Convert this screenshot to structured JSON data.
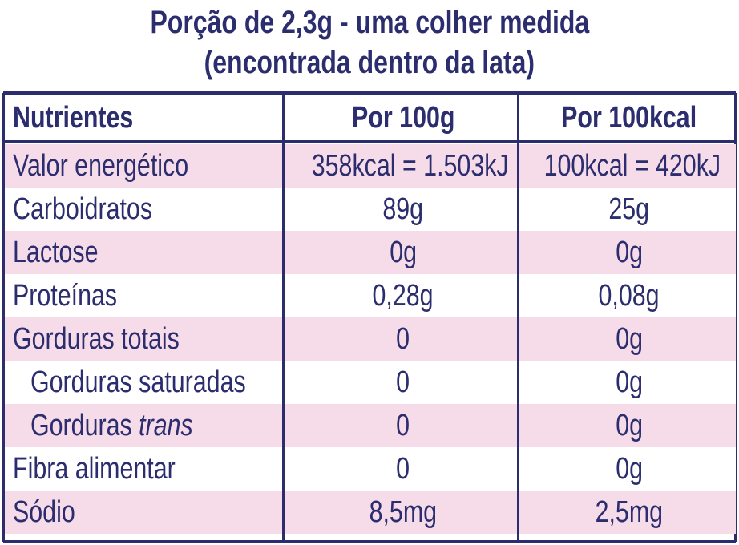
{
  "title": [
    "Porção de 2,3g - uma colher medida",
    "(encontrada dentro da lata)"
  ],
  "table": {
    "header": [
      "Nutrientes",
      "Por 100g",
      "Por 100kcal"
    ],
    "rows": [
      {
        "label": "Valor energético",
        "cells": [
          "358kcal = 1.503kJ",
          "100kcal = 420kJ"
        ]
      },
      {
        "label": "Carboidratos",
        "cells": [
          "89g",
          "25g"
        ]
      },
      {
        "label": "Lactose",
        "cells": [
          "0g",
          "0g"
        ]
      },
      {
        "label": "Proteínas",
        "cells": [
          "0,28g",
          "0,08g"
        ]
      },
      {
        "label": "Gorduras totais",
        "cells": [
          "0",
          "0g"
        ]
      },
      {
        "label": "Gorduras saturadas",
        "indent": true,
        "cells": [
          "0",
          "0g"
        ]
      },
      {
        "label": "Gorduras",
        "label_italic": "trans",
        "indent": true,
        "cells": [
          "0",
          "0g"
        ]
      },
      {
        "label": "Fibra alimentar",
        "cells": [
          "0",
          "0g"
        ]
      },
      {
        "label": "Sódio",
        "cells": [
          "8,5mg",
          "2,5mg"
        ]
      }
    ]
  }
}
